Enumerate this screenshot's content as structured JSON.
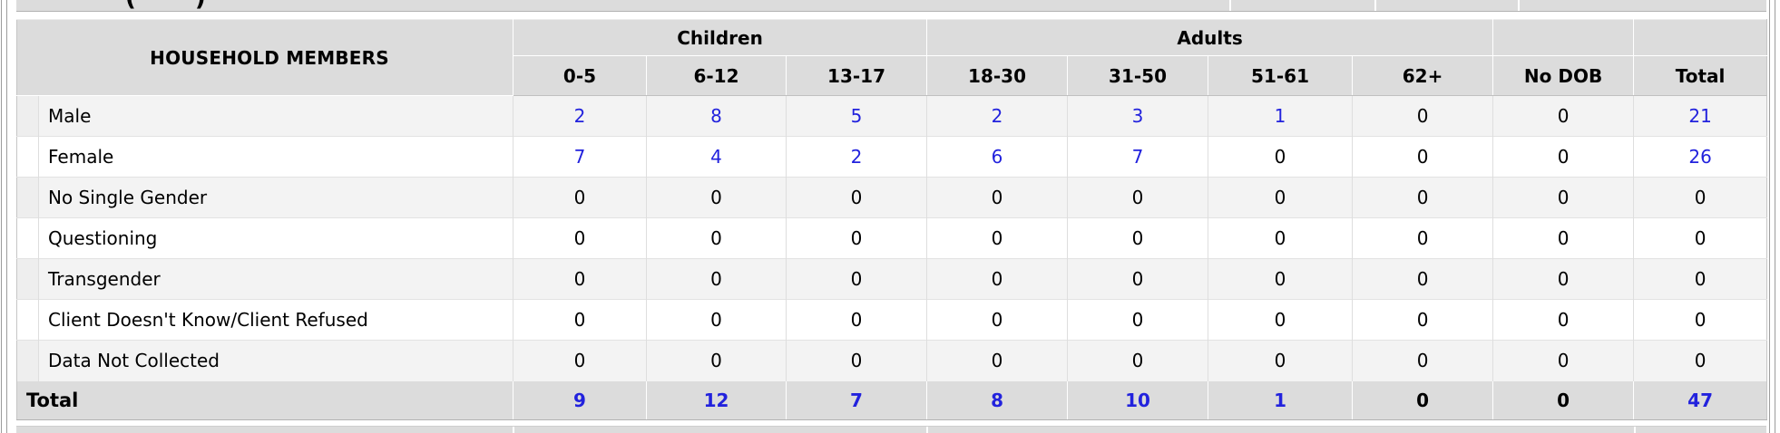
{
  "colors": {
    "link_blue": "#2222dd",
    "header_gray": "#dcdcdc",
    "stripe_gray": "#f3f3f3"
  },
  "partial_row_above": {
    "text": "( )"
  },
  "table": {
    "title": "HOUSEHOLD MEMBERS",
    "groups": [
      {
        "label": "Children",
        "span": 3
      },
      {
        "label": "Adults",
        "span": 4
      }
    ],
    "columns": [
      "0-5",
      "6-12",
      "13-17",
      "18-30",
      "31-50",
      "51-61",
      "62+",
      "No DOB",
      "Total"
    ],
    "rows": [
      {
        "label": "Male",
        "values": [
          "2",
          "8",
          "5",
          "2",
          "3",
          "1",
          "0",
          "0",
          "21"
        ]
      },
      {
        "label": "Female",
        "values": [
          "7",
          "4",
          "2",
          "6",
          "7",
          "0",
          "0",
          "0",
          "26"
        ]
      },
      {
        "label": "No Single Gender",
        "values": [
          "0",
          "0",
          "0",
          "0",
          "0",
          "0",
          "0",
          "0",
          "0"
        ]
      },
      {
        "label": "Questioning",
        "values": [
          "0",
          "0",
          "0",
          "0",
          "0",
          "0",
          "0",
          "0",
          "0"
        ]
      },
      {
        "label": "Transgender",
        "values": [
          "0",
          "0",
          "0",
          "0",
          "0",
          "0",
          "0",
          "0",
          "0"
        ]
      },
      {
        "label": "Client Doesn't Know/Client Refused",
        "values": [
          "0",
          "0",
          "0",
          "0",
          "0",
          "0",
          "0",
          "0",
          "0"
        ]
      },
      {
        "label": "Data Not Collected",
        "values": [
          "0",
          "0",
          "0",
          "0",
          "0",
          "0",
          "0",
          "0",
          "0"
        ]
      }
    ],
    "total_row": {
      "label": "Total",
      "values": [
        "9",
        "12",
        "7",
        "8",
        "10",
        "1",
        "0",
        "0",
        "47"
      ]
    }
  }
}
